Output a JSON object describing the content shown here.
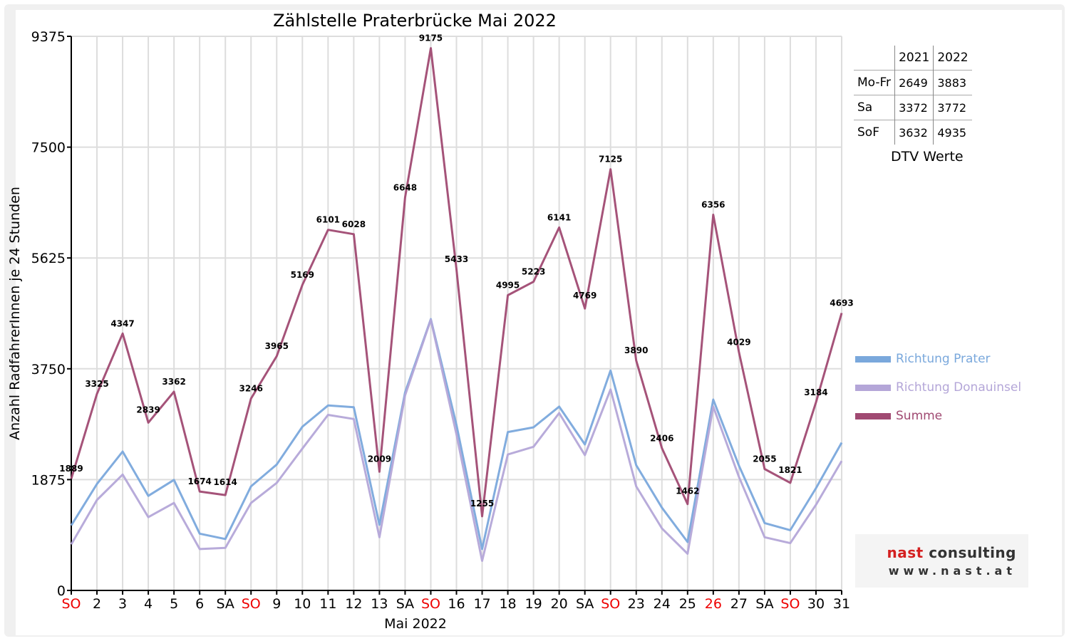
{
  "chart_data": {
    "type": "line",
    "title": "Zählstelle Praterbrücke Mai 2022",
    "xlabel": "Mai 2022",
    "ylabel": "Anzahl RadfahrerInnen je 24 Stunden",
    "ylim": [
      0,
      9375
    ],
    "yticks": [
      0,
      1875,
      3750,
      5625,
      7500,
      9375
    ],
    "grid": true,
    "legend_position": "right",
    "categories": [
      "SO",
      "2",
      "3",
      "4",
      "5",
      "6",
      "SA",
      "SO",
      "9",
      "10",
      "11",
      "12",
      "13",
      "SA",
      "SO",
      "16",
      "17",
      "18",
      "19",
      "20",
      "SA",
      "SO",
      "23",
      "24",
      "25",
      "26",
      "27",
      "SA",
      "SO",
      "30",
      "31"
    ],
    "red_categories": [
      0,
      7,
      14,
      21,
      25,
      28
    ],
    "series": [
      {
        "name": "Richtung Prater",
        "color": "#7aa8dc",
        "values": [
          1100,
          1800,
          2350,
          1600,
          1870,
          960,
          870,
          1760,
          2130,
          2770,
          3130,
          3100,
          1110,
          3350,
          4590,
          2800,
          700,
          2680,
          2760,
          3110,
          2470,
          3720,
          2120,
          1400,
          820,
          3230,
          2110,
          1140,
          1020,
          1730,
          2500
        ]
      },
      {
        "name": "Richtung Donauinsel",
        "color": "#b4a6d8",
        "values": [
          780,
          1530,
          1960,
          1240,
          1480,
          700,
          720,
          1480,
          1820,
          2400,
          2970,
          2900,
          900,
          3300,
          4580,
          2640,
          500,
          2300,
          2430,
          3000,
          2290,
          3400,
          1760,
          1050,
          620,
          3110,
          1920,
          900,
          800,
          1450,
          2190
        ]
      },
      {
        "name": "Summe",
        "color": "#a04a72",
        "values": [
          1889,
          3325,
          4347,
          2839,
          3362,
          1674,
          1614,
          3246,
          3965,
          5169,
          6101,
          6028,
          2009,
          6648,
          9175,
          5433,
          1255,
          4995,
          5223,
          6141,
          4769,
          7125,
          3890,
          2406,
          1462,
          6356,
          4029,
          2055,
          1821,
          3184,
          4693
        ]
      }
    ]
  },
  "dtv_table": {
    "header": [
      "",
      "2021",
      "2022"
    ],
    "rows": [
      [
        "Mo-Fr",
        "2649",
        "3883"
      ],
      [
        "Sa",
        "3372",
        "3772"
      ],
      [
        "SoF",
        "3632",
        "4935"
      ]
    ],
    "caption": "DTV Werte"
  },
  "logo": {
    "name_accent": "nast",
    "name_rest": "consulting",
    "url": "www.nast.at"
  }
}
